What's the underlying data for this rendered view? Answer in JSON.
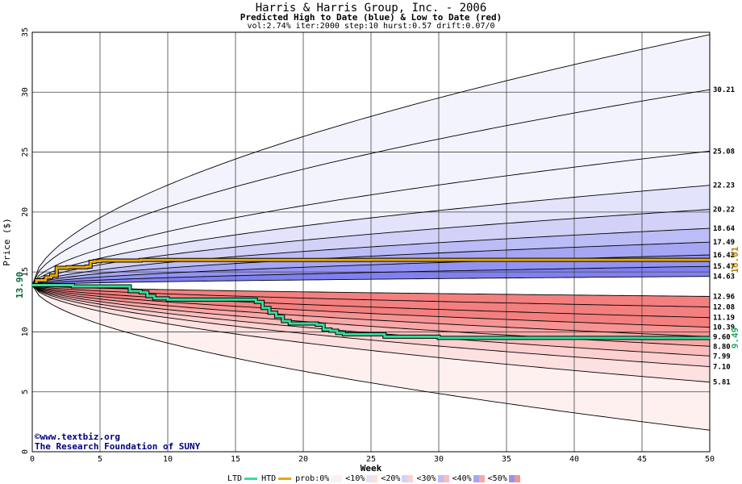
{
  "title": "Harris & Harris Group, Inc. - 2006",
  "subtitle": "Predicted High to Date (blue) &  Low to Date (red)",
  "params": "vol:2.74% iter:2000 step:10 hurst:0.57 drift:0.07/0",
  "credits": {
    "line1": "©www.textbiz.org",
    "line2": "The Research Foundation of SUNY"
  },
  "legend": {
    "ltd": "LTD",
    "htd": "HTD",
    "prob": "prob:0%",
    "b10": "<10%",
    "b20": "<20%",
    "b30": "<30%",
    "b40": "<40%",
    "b50": "<50%"
  },
  "colors": {
    "ltd": "#33dd99",
    "htd": "#e8a800",
    "blue_bands": [
      "#f3f3fd",
      "#e3e3fb",
      "#d2d2f8",
      "#bcbcf6",
      "#a6a6f4",
      "#9393f4",
      "#8080f2"
    ],
    "red_bands": [
      "#fff0f0",
      "#fde0e0",
      "#fcd0d0",
      "#fbbcbc",
      "#f9a7a7",
      "#f69494",
      "#f47f7f"
    ]
  },
  "chart_data": {
    "type": "area",
    "xlabel": "Week",
    "ylabel": "Price ($)",
    "xlim": [
      0,
      50
    ],
    "ylim": [
      0,
      35
    ],
    "xticks": [
      0,
      5,
      10,
      15,
      20,
      25,
      30,
      35,
      40,
      45,
      50
    ],
    "yticks": [
      0,
      5,
      10,
      15,
      20,
      25,
      30,
      35
    ],
    "grid": true,
    "start_price": 13.9,
    "start_label": "13.90",
    "htd_final_label": "16.01",
    "ltd_final_label": "9.49",
    "upper_quantile_lines": [
      {
        "label": "",
        "final": 34.8,
        "extends_beyond_top": true
      },
      {
        "label": "30.21",
        "final": 30.21
      },
      {
        "label": "25.08",
        "final": 25.08
      },
      {
        "label": "22.23",
        "final": 22.23
      },
      {
        "label": "20.22",
        "final": 20.22
      },
      {
        "label": "18.64",
        "final": 18.64
      },
      {
        "label": "17.49",
        "final": 17.49
      },
      {
        "label": "16.42",
        "final": 16.42
      },
      {
        "label": "15.47",
        "final": 15.47
      },
      {
        "label": "14.63",
        "final": 14.63
      }
    ],
    "lower_quantile_lines": [
      {
        "label": "12.96",
        "final": 12.96
      },
      {
        "label": "12.08",
        "final": 12.08
      },
      {
        "label": "11.19",
        "final": 11.19
      },
      {
        "label": "10.39",
        "final": 10.39
      },
      {
        "label": "9.60",
        "final": 9.6
      },
      {
        "label": "8.80",
        "final": 8.8
      },
      {
        "label": "7.99",
        "final": 7.99
      },
      {
        "label": "7.10",
        "final": 7.1
      },
      {
        "label": "5.81",
        "final": 5.81
      },
      {
        "label": "",
        "final": 1.8
      }
    ],
    "series": [
      {
        "name": "HTD",
        "x": [
          0,
          0.3,
          0.6,
          1.0,
          1.4,
          1.8,
          2.2,
          2.6,
          3.0,
          3.5,
          4.0,
          4.3,
          4.6,
          5.0,
          6.0,
          8.0,
          10.0,
          15.0,
          20.0,
          25.0,
          30.0,
          35.0,
          40.0,
          45.0,
          50.0
        ],
        "y": [
          13.9,
          14.3,
          14.3,
          14.55,
          14.7,
          15.35,
          15.35,
          15.4,
          15.4,
          15.4,
          15.45,
          15.85,
          15.9,
          15.95,
          15.95,
          16.0,
          16.0,
          16.0,
          16.0,
          16.01,
          16.01,
          16.01,
          16.01,
          16.01,
          16.01
        ]
      },
      {
        "name": "LTD",
        "x": [
          0,
          1.0,
          2.0,
          3.0,
          4.0,
          5.0,
          6.0,
          7.0,
          7.2,
          8.0,
          8.5,
          9.0,
          10.0,
          12.0,
          14.0,
          16.5,
          17.0,
          17.5,
          18.0,
          18.5,
          19.0,
          20.0,
          21.0,
          21.5,
          22.0,
          22.5,
          23.0,
          24.0,
          25.0,
          26.0,
          28.0,
          30.0,
          35.0,
          40.0,
          45.0,
          50.0
        ],
        "y": [
          13.9,
          13.9,
          13.9,
          13.8,
          13.8,
          13.8,
          13.8,
          13.8,
          13.4,
          13.3,
          13.0,
          12.8,
          12.7,
          12.7,
          12.7,
          12.5,
          12.0,
          11.6,
          11.3,
          10.9,
          10.7,
          10.7,
          10.6,
          10.2,
          10.1,
          9.9,
          9.8,
          9.8,
          9.8,
          9.6,
          9.6,
          9.5,
          9.5,
          9.5,
          9.49,
          9.49
        ]
      }
    ]
  }
}
